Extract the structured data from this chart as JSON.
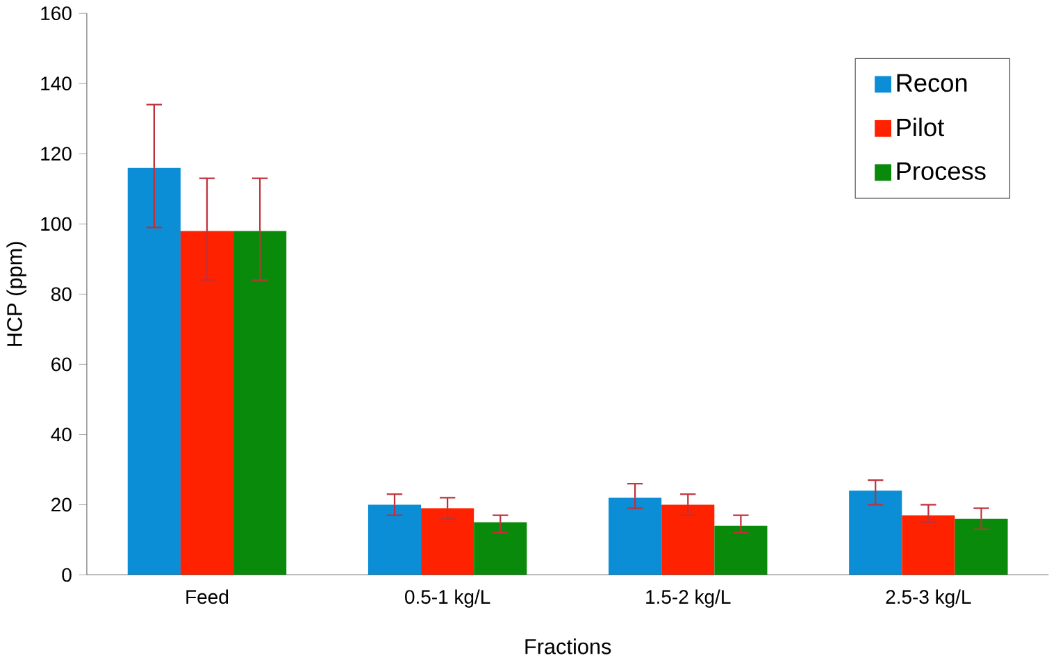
{
  "chart_data": {
    "type": "bar",
    "xlabel": "Fractions",
    "ylabel": "HCP (ppm)",
    "categories": [
      "Feed",
      "0.5-1 kg/L",
      "1.5-2 kg/L",
      "2.5-3 kg/L"
    ],
    "ylim": [
      0,
      160
    ],
    "yticks": [
      0,
      20,
      40,
      60,
      80,
      100,
      120,
      140,
      160
    ],
    "grid": false,
    "legend": "top right",
    "series": [
      {
        "name": "Recon",
        "color": "#0b8ed6",
        "values": [
          116,
          20,
          22,
          24
        ],
        "errors": [
          [
            99,
            134
          ],
          [
            17,
            23
          ],
          [
            19,
            26
          ],
          [
            20,
            27
          ]
        ]
      },
      {
        "name": "Pilot",
        "color": "#ff2200",
        "values": [
          98,
          19,
          20,
          17
        ],
        "errors": [
          [
            84,
            113
          ],
          [
            16,
            22
          ],
          [
            17,
            23
          ],
          [
            15,
            20
          ]
        ]
      },
      {
        "name": "Process",
        "color": "#0a8a0a",
        "values": [
          98,
          15,
          14,
          16
        ],
        "errors": [
          [
            84,
            113
          ],
          [
            12,
            17
          ],
          [
            12,
            17
          ],
          [
            13,
            19
          ]
        ]
      }
    ]
  }
}
